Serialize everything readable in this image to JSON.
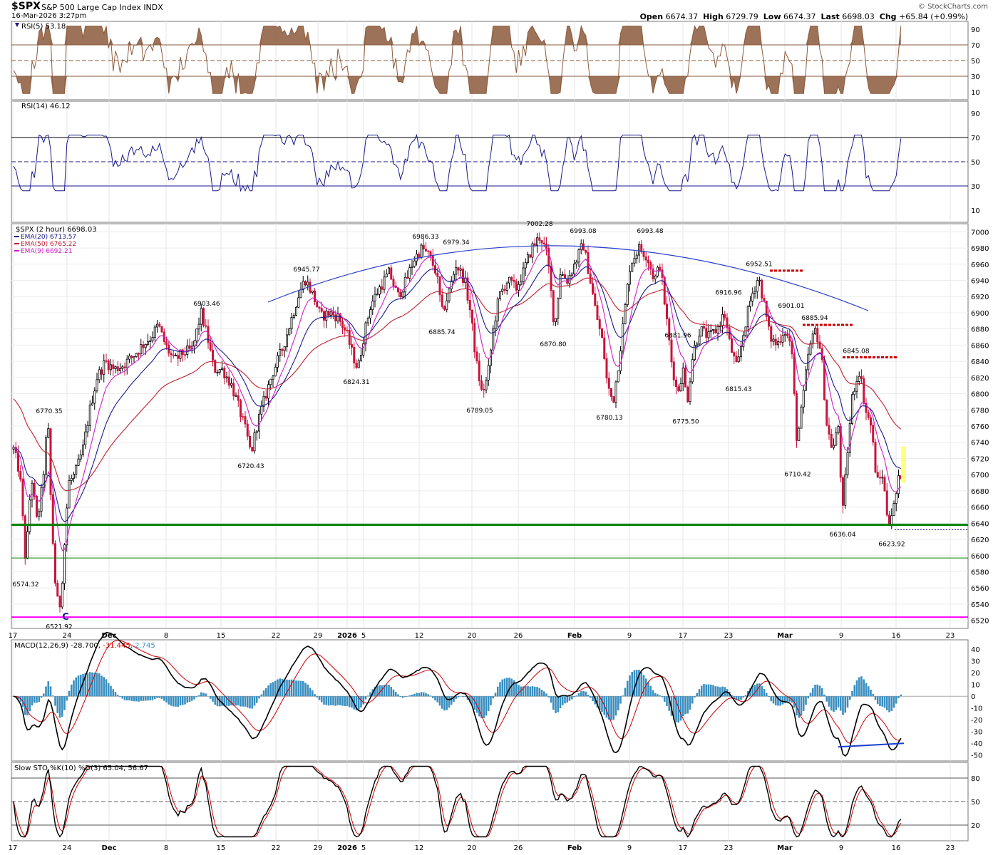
{
  "header": {
    "symbol": "$SPX",
    "name": "S&P 500 Large Cap Index",
    "exchange": "INDX",
    "date": "16-Mar-2026 3:27pm",
    "brand": "© StockCharts.com",
    "open_label": "Open",
    "open": "6674.37",
    "high_label": "High",
    "high": "6729.79",
    "low_label": "Low",
    "low": "6674.37",
    "last_label": "Last",
    "last": "6698.03",
    "chg_label": "Chg",
    "chg": "+65.84 (+0.99%)"
  },
  "colors": {
    "rsi5": "#8b5a3c",
    "rsi5_fill": "#8b5a3c",
    "rsi14": "#1a1a8c",
    "ema20": "#1a1a8c",
    "ema50": "#c21f30",
    "ema9": "#d020c8",
    "up_candle": "#000000",
    "down_candle": "#c8143c",
    "arc": "#2a3fd0",
    "support_green": "#008000",
    "support_magenta": "#ff00ff",
    "resistance_red": "#cc0000",
    "macd": "#000000",
    "signal": "#cc0000",
    "hist": "#3b8fc0",
    "sto_k": "#000000",
    "sto_d": "#cc0000",
    "divergence": "#1a3fd0",
    "highlight": "#ffff80"
  },
  "panels": {
    "rsi5": {
      "label": "RSI(5) 53.18",
      "ticks": [
        90,
        70,
        50,
        30,
        10
      ]
    },
    "rsi14": {
      "label": "RSI(14) 46.12",
      "ticks": [
        90,
        70,
        50,
        30,
        10
      ]
    },
    "price": {
      "label": "$SPX (2 hour) 6698.03",
      "legend": [
        "EMA(20) 6713.57",
        "EMA(50) 6765.22",
        "EMA(9) 6692.21"
      ],
      "ticks": [
        7000,
        6980,
        6960,
        6940,
        6920,
        6900,
        6880,
        6860,
        6840,
        6820,
        6800,
        6780,
        6760,
        6740,
        6720,
        6700,
        6680,
        6660,
        6640,
        6620,
        6600,
        6580,
        6560,
        6540,
        6520
      ]
    },
    "macd": {
      "label": "MACD(12,26,9)",
      "vals": [
        "-28.700",
        "-31.445",
        "2.745"
      ],
      "ticks": [
        40,
        30,
        20,
        10,
        0,
        -10,
        -20,
        -30,
        -40,
        -50
      ]
    },
    "sto": {
      "label": "Slow STO %K(10) %D(3) 65.04, 56.67",
      "ticks": [
        80,
        50,
        20
      ]
    }
  },
  "xaxis": [
    "17",
    "24",
    "Dec",
    "8",
    "15",
    "22",
    "29",
    "2026",
    "5",
    "12",
    "20",
    "26",
    "Feb",
    "9",
    "17",
    "23",
    "Mar",
    "9",
    "16",
    "23"
  ],
  "chart_data": {
    "type": "candlestick",
    "title": "$SPX S&P 500 Large Cap Index INDX",
    "yscale": "linear",
    "ylim": [
      6510,
      7010
    ],
    "annotations": [
      {
        "label": "6770.35",
        "x": "Nov 20",
        "y": 6770.35
      },
      {
        "label": "6574.32",
        "x": "Nov 17",
        "y": 6574.32
      },
      {
        "label": "6521.92",
        "x": "Nov 21",
        "y": 6521.92
      },
      {
        "label": "6903.46",
        "x": "Dec 11",
        "y": 6903.46
      },
      {
        "label": "6720.43",
        "x": "Dec 17",
        "y": 6720.43
      },
      {
        "label": "6945.77",
        "x": "Dec 24",
        "y": 6945.77
      },
      {
        "label": "6824.31",
        "x": "Dec 31",
        "y": 6824.31
      },
      {
        "label": "6986.33",
        "x": "Jan 6",
        "y": 6986.33
      },
      {
        "label": "6979.34",
        "x": "Jan 12",
        "y": 6979.34
      },
      {
        "label": "6885.74",
        "x": "Jan 13",
        "y": 6885.74
      },
      {
        "label": "6789.05",
        "x": "Jan 20",
        "y": 6789.05
      },
      {
        "label": "7002.28",
        "x": "Jan 28",
        "y": 7002.28
      },
      {
        "label": "6993.08",
        "x": "Feb 2",
        "y": 6993.08
      },
      {
        "label": "6870.80",
        "x": "Jan 29",
        "y": 6870.8
      },
      {
        "label": "6780.13",
        "x": "Feb 5",
        "y": 6780.13
      },
      {
        "label": "6993.48",
        "x": "Feb 11",
        "y": 6993.48
      },
      {
        "label": "6881.96",
        "x": "Feb 12",
        "y": 6881.96
      },
      {
        "label": "6775.50",
        "x": "Feb 17",
        "y": 6775.5
      },
      {
        "label": "6916.96",
        "x": "Feb 20",
        "y": 6916.96
      },
      {
        "label": "6815.43",
        "x": "Feb 23",
        "y": 6815.43
      },
      {
        "label": "6952.51",
        "x": "Feb 27",
        "y": 6952.51
      },
      {
        "label": "6901.01",
        "x": "Mar 2",
        "y": 6901.01
      },
      {
        "label": "6710.42",
        "x": "Mar 3",
        "y": 6710.42
      },
      {
        "label": "6885.94",
        "x": "Mar 5",
        "y": 6885.94
      },
      {
        "label": "6845.08",
        "x": "Mar 11",
        "y": 6845.08
      },
      {
        "label": "6636.04",
        "x": "Mar 9",
        "y": 6636.04
      },
      {
        "label": "6623.92",
        "x": "Mar 13",
        "y": 6623.92
      }
    ],
    "support_levels": [
      6638,
      6597,
      6524
    ],
    "resistance_levels": [
      6952,
      6885,
      6845
    ],
    "last": 6698.03,
    "ema": {
      "ema20": 6713.57,
      "ema50": 6765.22,
      "ema9": 6692.21
    },
    "rsi5": 53.18,
    "rsi14": 46.12,
    "macd": {
      "macd": -28.7,
      "signal": -31.445,
      "hist": 2.745
    },
    "slow_sto": {
      "k": 65.04,
      "d": 56.67
    }
  }
}
